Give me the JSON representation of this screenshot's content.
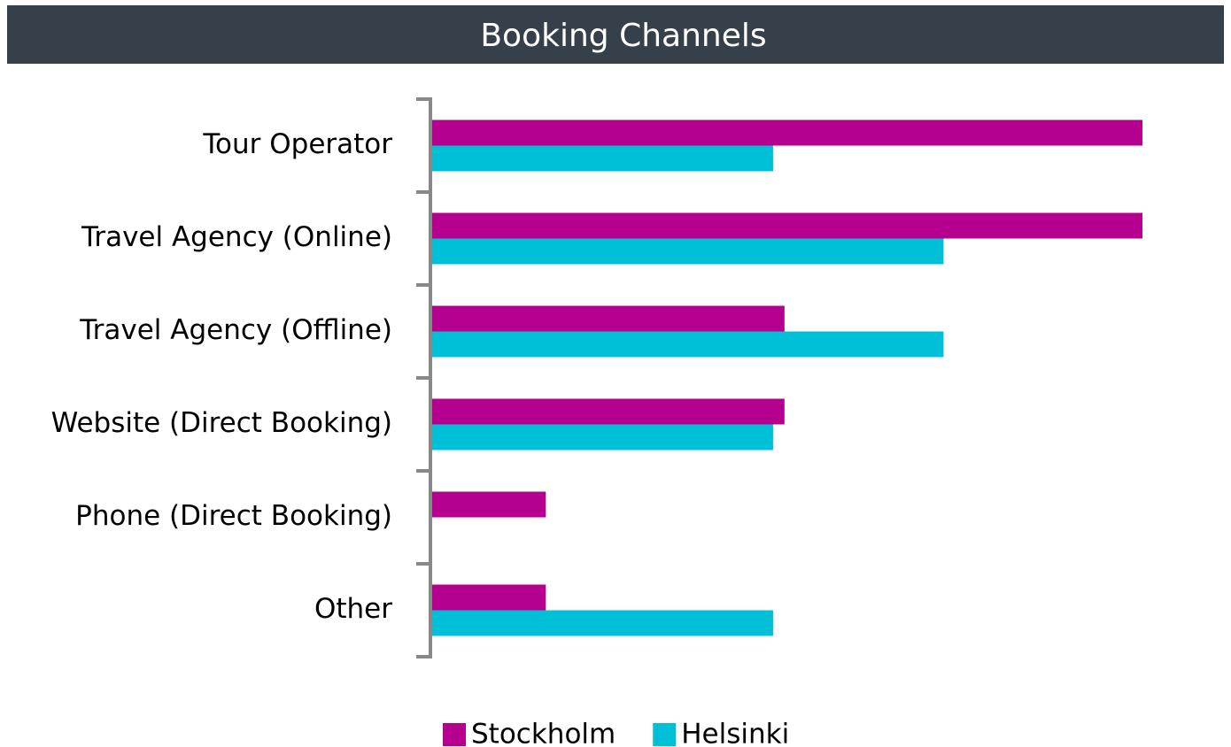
{
  "chart_data": {
    "type": "barh",
    "title": "Booking Channels",
    "categories": [
      "Tour Operator",
      "Travel Agency (Online)",
      "Travel Agency (Offline)",
      "Website (Direct Booking)",
      "Phone (Direct Booking)",
      "Other"
    ],
    "series": [
      {
        "name": "Stockholm",
        "color": "#b5008f",
        "values": [
          25,
          25,
          12.4,
          12.4,
          4,
          4
        ]
      },
      {
        "name": "Helsinki",
        "color": "#00c0d8",
        "values": [
          12,
          18,
          18,
          12,
          0,
          12
        ]
      }
    ],
    "xlim": [
      0,
      25
    ]
  }
}
